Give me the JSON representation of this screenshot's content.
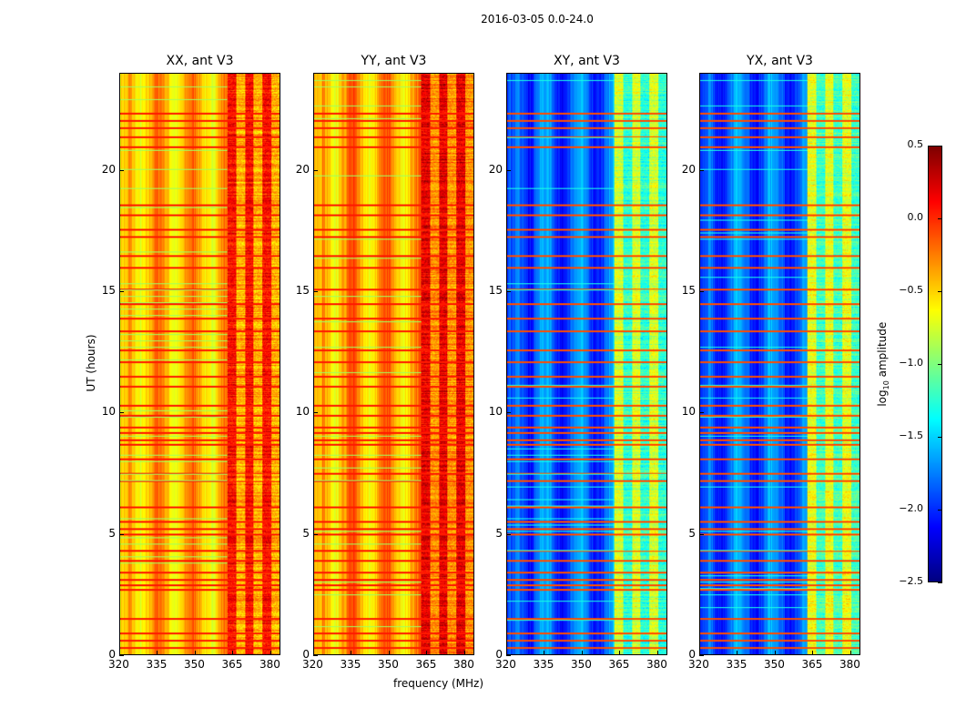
{
  "chart_data": {
    "type": "heatmap",
    "suptitle": "2016-03-05 0.0-24.0",
    "xlabel": "frequency (MHz)",
    "ylabel": "UT (hours)",
    "xlim": [
      320,
      384
    ],
    "ylim": [
      0,
      24
    ],
    "xticks": [
      320,
      335,
      350,
      365,
      380
    ],
    "yticks": [
      0,
      5,
      10,
      15,
      20
    ],
    "colormap": "jet",
    "colorbar": {
      "label_prefix": "log",
      "label_sub": "10",
      "label_suffix": " amplitude",
      "range": [
        -2.5,
        0.5
      ],
      "ticks": [
        "0.5",
        "0.0",
        "−0.5",
        "−1.0",
        "−1.5",
        "−2.0",
        "−2.5"
      ],
      "tick_values": [
        0.5,
        0.0,
        -0.5,
        -1.0,
        -1.5,
        -2.0,
        -2.5
      ]
    },
    "rfi_band_mhz": [
      363,
      384
    ],
    "bright_rows_hours": [
      0.3,
      0.6,
      0.9,
      1.5,
      2.7,
      2.9,
      3.1,
      3.4,
      3.9,
      4.3,
      5.0,
      5.2,
      5.5,
      6.1,
      7.2,
      7.5,
      8.1,
      8.7,
      8.9,
      9.2,
      9.4,
      9.9,
      10.3,
      11.1,
      11.5,
      12.1,
      12.6,
      13.4,
      13.9,
      14.5,
      15.1,
      16.0,
      16.5,
      17.3,
      17.6,
      18.2,
      18.6,
      21.0,
      21.4,
      21.8,
      22.1,
      22.4
    ],
    "panels": [
      {
        "title": "XX, ant V3",
        "base_level": -0.45,
        "band_level": -0.05,
        "show_ylabels": true
      },
      {
        "title": "YY, ant V3",
        "base_level": -0.4,
        "band_level": 0.05,
        "show_ylabels": false
      },
      {
        "title": "XY, ant V3",
        "base_level": -1.85,
        "band_level": -0.9,
        "show_ylabels": true
      },
      {
        "title": "YX, ant V3",
        "base_level": -1.85,
        "band_level": -0.85,
        "show_ylabels": true
      }
    ]
  }
}
